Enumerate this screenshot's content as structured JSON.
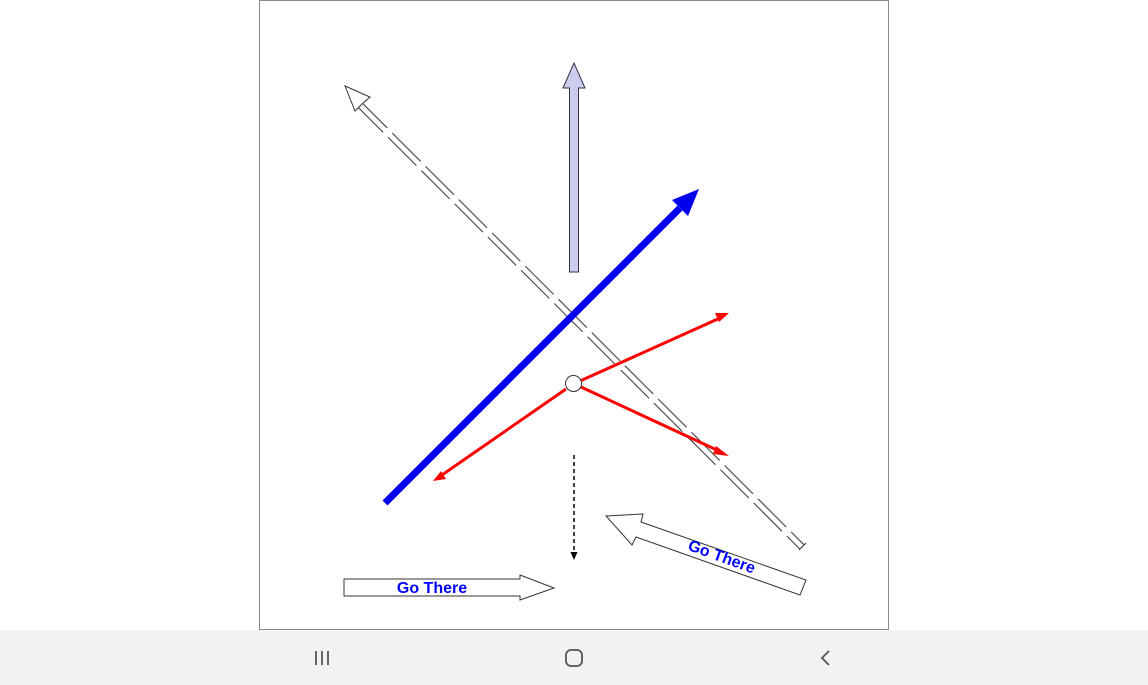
{
  "colors": {
    "background": "#ffffff",
    "frame": "#8a8a8a",
    "blue_arrow": "#0000ee",
    "red_arrows": "#ff0000",
    "lavender_fill": "#ccccee",
    "label_text": "#0000ff",
    "navbar": "#f2f2f2",
    "nav_icon": "#555555"
  },
  "labels": {
    "go_there_horizontal": "Go There",
    "go_there_slanted": "Go There"
  },
  "navbar": {
    "recent_icon": "recent-apps-icon",
    "home_icon": "home-icon",
    "back_icon": "back-icon"
  }
}
